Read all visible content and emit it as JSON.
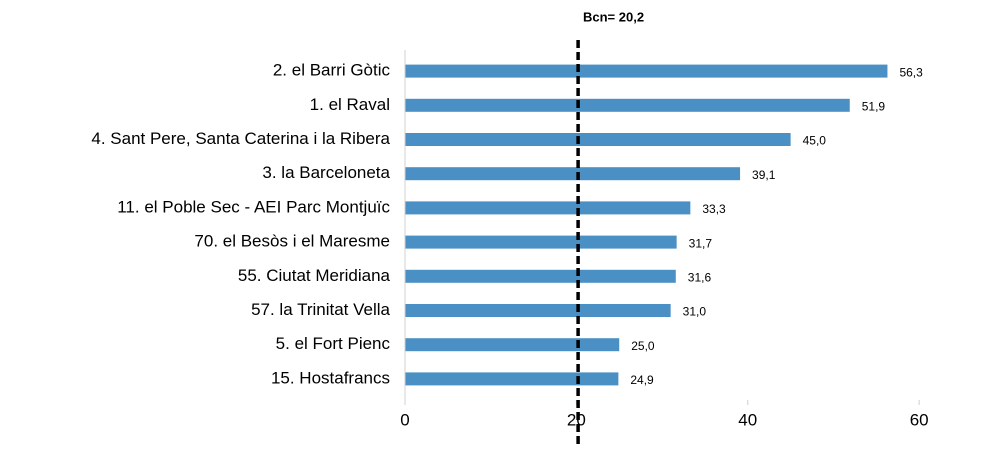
{
  "chart_data": {
    "type": "barh",
    "categories": [
      "2. el Barri Gòtic",
      "1. el Raval",
      "4. Sant Pere, Santa Caterina i la Ribera",
      "3. la Barceloneta",
      "11. el Poble Sec - AEI Parc Montjuïc",
      "70. el Besòs i el Maresme",
      "55. Ciutat Meridiana",
      "57. la Trinitat Vella",
      "5. el Fort Pienc",
      "15. Hostafrancs"
    ],
    "values": [
      56.3,
      51.9,
      45.0,
      39.1,
      33.3,
      31.7,
      31.6,
      31.0,
      25.0,
      24.9
    ],
    "value_labels": [
      "56,3",
      "51,9",
      "45,0",
      "39,1",
      "33,3",
      "31,7",
      "31,6",
      "31,0",
      "25,0",
      "24,9"
    ],
    "color": "#4a90c4",
    "xlim": [
      0,
      65
    ],
    "xticks": [
      0,
      20,
      40,
      60
    ],
    "reference": {
      "value": 20.2,
      "label": "Bcn= 20,2",
      "color": "#000000"
    }
  }
}
